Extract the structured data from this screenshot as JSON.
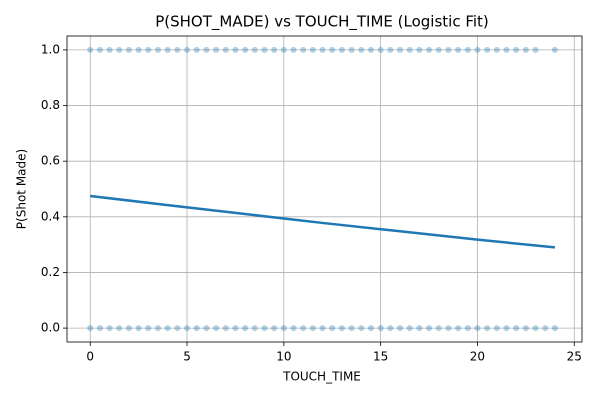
{
  "chart_data": {
    "type": "scatter",
    "title": "P(SHOT_MADE) vs TOUCH_TIME (Logistic Fit)",
    "xlabel": "TOUCH_TIME",
    "ylabel": "P(Shot Made)",
    "xlim": [
      -1.2,
      25.4
    ],
    "ylim": [
      -0.05,
      1.05
    ],
    "xticks": [
      0,
      5,
      10,
      15,
      20,
      25
    ],
    "yticks": [
      {
        "value": 0,
        "label": "0.0"
      },
      {
        "value": 0.2,
        "label": "0.2"
      },
      {
        "value": 0.4,
        "label": "0.4"
      },
      {
        "value": 0.6,
        "label": "0.6"
      },
      {
        "value": 0.8,
        "label": "0.8"
      },
      {
        "value": 1,
        "label": "1.0"
      }
    ],
    "grid": true,
    "series": [
      {
        "type": "scatter",
        "color": "#1f77b4",
        "x": [
          0,
          0.5,
          1,
          1.5,
          2,
          2.5,
          3,
          3.5,
          4,
          4.5,
          5,
          5.5,
          6,
          6.5,
          7,
          7.5,
          8,
          8.5,
          9,
          9.5,
          10,
          10.5,
          11,
          11.5,
          12,
          12.5,
          13,
          13.5,
          14,
          14.5,
          15,
          15.5,
          16,
          16.5,
          17,
          17.5,
          18,
          18.5,
          19,
          19.5,
          20,
          20.5,
          21,
          21.5,
          22,
          22.5,
          23,
          24
        ],
        "values": [
          1,
          1,
          1,
          1,
          1,
          1,
          1,
          1,
          1,
          1,
          1,
          1,
          1,
          1,
          1,
          1,
          1,
          1,
          1,
          1,
          1,
          1,
          1,
          1,
          1,
          1,
          1,
          1,
          1,
          1,
          1,
          1,
          1,
          1,
          1,
          1,
          1,
          1,
          1,
          1,
          1,
          1,
          1,
          1,
          1,
          1,
          1,
          1
        ]
      },
      {
        "type": "scatter",
        "color": "#1f77b4",
        "x": [
          0,
          0.5,
          1,
          1.5,
          2,
          2.5,
          3,
          3.5,
          4,
          4.5,
          5,
          5.5,
          6,
          6.5,
          7,
          7.5,
          8,
          8.5,
          9,
          9.5,
          10,
          10.5,
          11,
          11.5,
          12,
          12.5,
          13,
          13.5,
          14,
          14.5,
          15,
          15.5,
          16,
          16.5,
          17,
          17.5,
          18,
          18.5,
          19,
          19.5,
          20,
          20.5,
          21,
          21.5,
          22,
          22.5,
          23,
          23.5,
          24
        ],
        "values": [
          0,
          0,
          0,
          0,
          0,
          0,
          0,
          0,
          0,
          0,
          0,
          0,
          0,
          0,
          0,
          0,
          0,
          0,
          0,
          0,
          0,
          0,
          0,
          0,
          0,
          0,
          0,
          0,
          0,
          0,
          0,
          0,
          0,
          0,
          0,
          0,
          0,
          0,
          0,
          0,
          0,
          0,
          0,
          0,
          0,
          0,
          0,
          0,
          0
        ]
      },
      {
        "type": "line",
        "color": "#1f77b4",
        "x": [
          0,
          4,
          8,
          12,
          16,
          20,
          24
        ],
        "values": [
          0.475,
          0.442,
          0.41,
          0.378,
          0.348,
          0.318,
          0.29
        ]
      }
    ]
  }
}
